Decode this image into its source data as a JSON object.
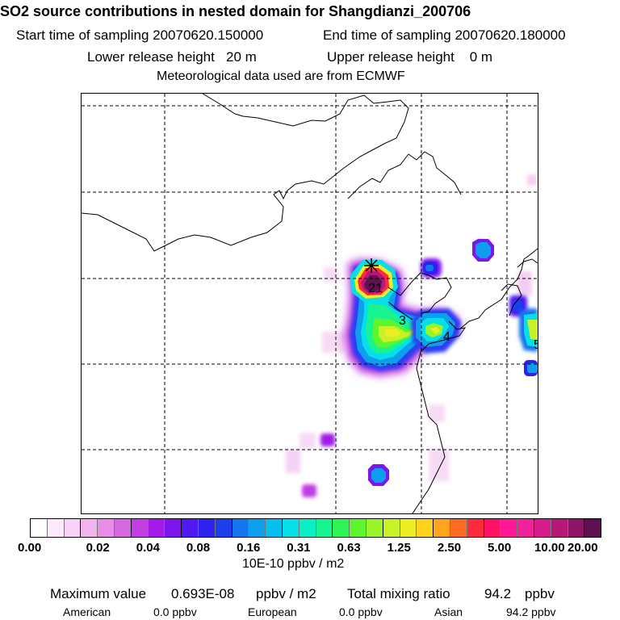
{
  "header": {
    "title": "SO2 source contributions in nested domain for Shangdianzi_200706",
    "start_time": "Start time of sampling 20070620.150000",
    "end_time": "End time of sampling 20070620.180000",
    "lower_height": "Lower release height   20 m",
    "upper_height": "Upper release height    0 m",
    "met_data": "Meteorological data used are from ECMWF"
  },
  "map": {
    "markers": [
      "2",
      "1",
      "3",
      "4",
      "5"
    ],
    "station_symbol": "star-icon"
  },
  "colorbar": {
    "tick_labels": [
      "0.00",
      "0.02",
      "0.04",
      "0.08",
      "0.16",
      "0.31",
      "0.63",
      "1.25",
      "2.50",
      "5.00",
      "10.00",
      "20.00"
    ],
    "unit": "10E-10 ppbv / m2",
    "colors": [
      "#ffffff",
      "#fde9fb",
      "#f9d1f6",
      "#f2b4ef",
      "#e98ee7",
      "#d766e2",
      "#c23ee0",
      "#a21ae6",
      "#7d15ee",
      "#5018f2",
      "#2d22ee",
      "#1c3fee",
      "#1575ee",
      "#0c9fee",
      "#05bfee",
      "#05dfe9",
      "#0af0c6",
      "#16f58f",
      "#2ef555",
      "#5ff52e",
      "#98f529",
      "#c8f227",
      "#eaee22",
      "#ffd21d",
      "#ffa41d",
      "#ff6b22",
      "#ff2a3c",
      "#ff1266",
      "#ff1996",
      "#f0239c",
      "#d61d8c",
      "#b51879",
      "#8d1466",
      "#5e1050"
    ]
  },
  "footer": {
    "max_label": "Maximum value",
    "max_value": "0.693E-08",
    "max_unit": "ppbv / m2",
    "total_label": "Total mixing ratio",
    "total_value": "94.2",
    "total_unit": "ppbv",
    "regions": [
      {
        "name": "American",
        "value": "0.0 ppbv"
      },
      {
        "name": "European",
        "value": "0.0 ppbv"
      },
      {
        "name": "Asian",
        "value": "94.2 ppbv"
      }
    ]
  }
}
